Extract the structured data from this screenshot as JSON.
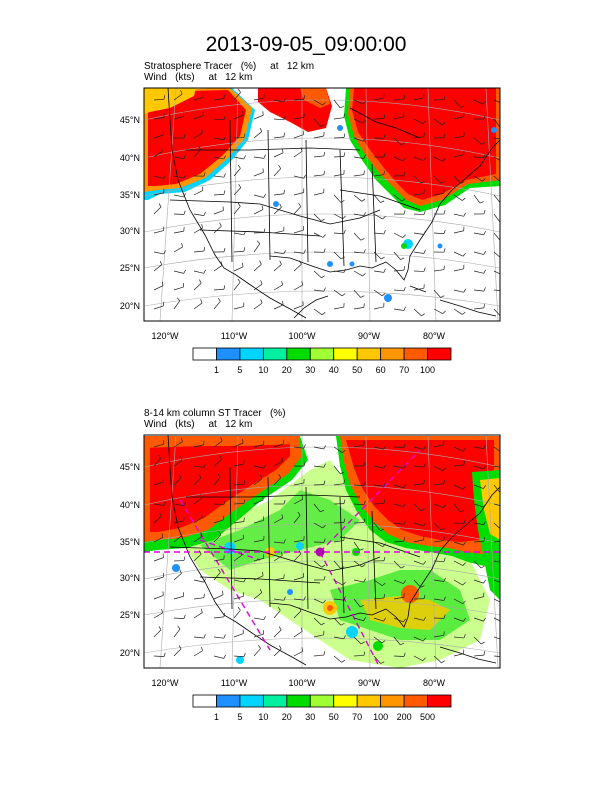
{
  "title": "2013-09-05_09:00:00",
  "panels": [
    {
      "title_line1": "Stratosphere Tracer   (%)     at   12 km",
      "title_line2": "Wind   (kts)     at   12 km",
      "lat_labels": [
        "45°N",
        "40°N",
        "35°N",
        "30°N",
        "25°N",
        "20°N"
      ],
      "lon_labels": [
        "120°W",
        "110°W",
        "100°W",
        "90°W",
        "80°W"
      ],
      "legend": {
        "colors": [
          "#ffffff",
          "#1e90ff",
          "#00d4ff",
          "#00f0a0",
          "#00dc00",
          "#a0ff32",
          "#ffff00",
          "#ffc800",
          "#ff9600",
          "#ff5a00",
          "#ff0000"
        ],
        "labels": [
          "1",
          "5",
          "10",
          "20",
          "30",
          "40",
          "50",
          "60",
          "70",
          "100"
        ]
      }
    },
    {
      "title_line1": "8-14 km column ST Tracer   (%)",
      "title_line2": "Wind   (kts)     at   12 km",
      "lat_labels": [
        "45°N",
        "40°N",
        "35°N",
        "30°N",
        "25°N",
        "20°N"
      ],
      "lon_labels": [
        "120°W",
        "110°W",
        "100°W",
        "90°W",
        "80°W"
      ],
      "legend": {
        "colors": [
          "#ffffff",
          "#1e90ff",
          "#00d4ff",
          "#00f0a0",
          "#00dc00",
          "#a0ff32",
          "#ffff00",
          "#ffc800",
          "#ff9600",
          "#ff5a00",
          "#ff0000"
        ],
        "labels": [
          "1",
          "5",
          "10",
          "20",
          "30",
          "50",
          "70",
          "100",
          "200",
          "500"
        ]
      }
    }
  ]
}
